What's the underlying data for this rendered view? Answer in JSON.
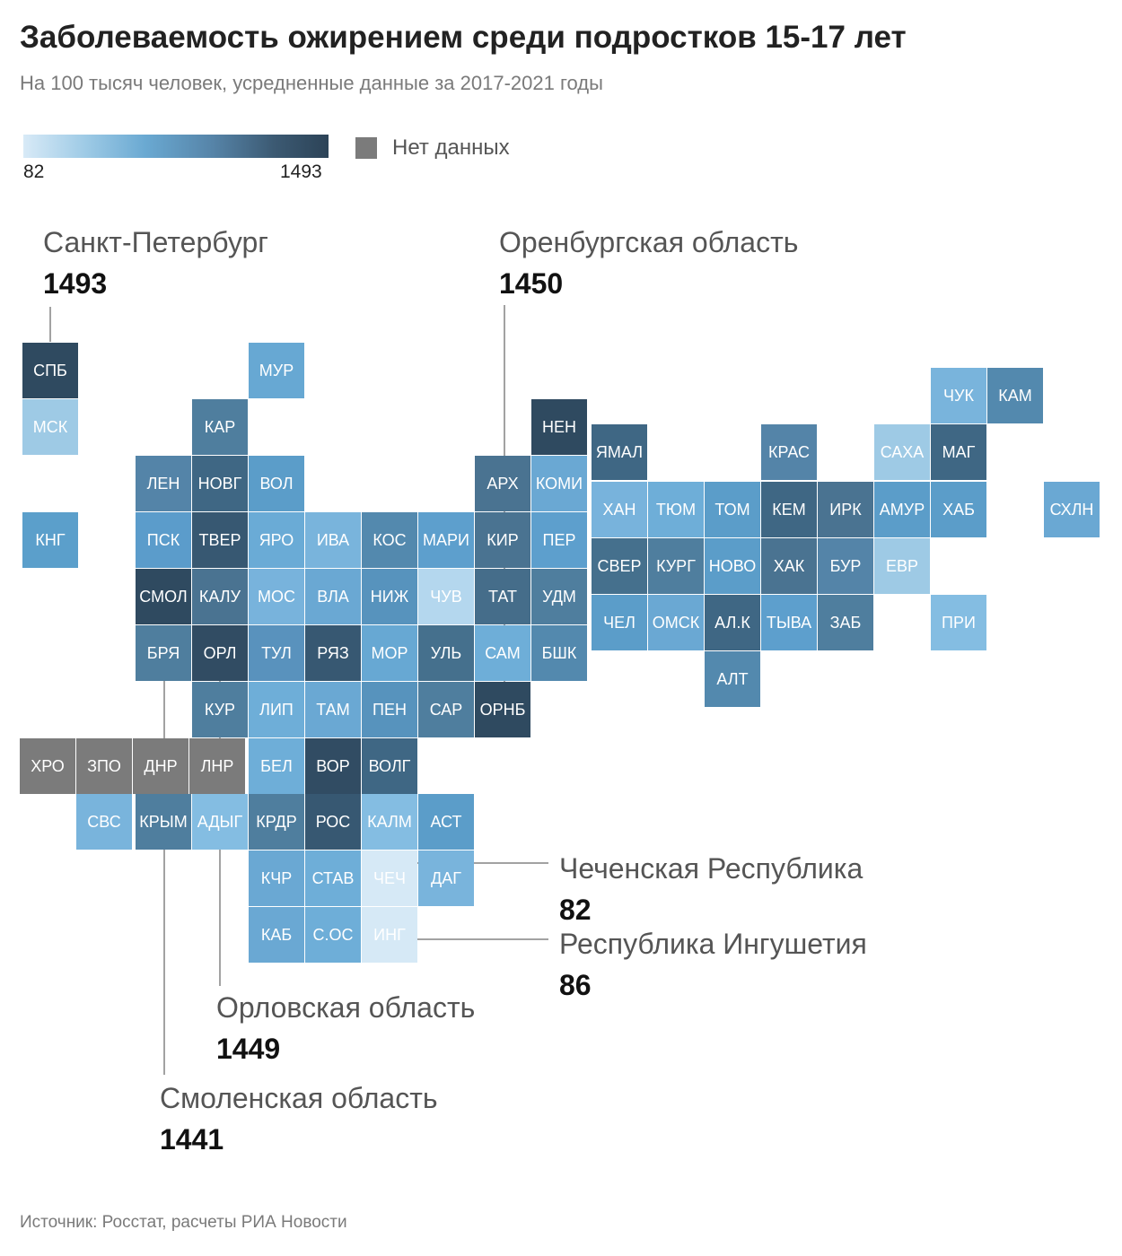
{
  "header": {
    "title": "Заболеваемость ожирением среди подростков 15-17 лет",
    "subtitle": "На 100 тысяч человек, усредненные данные за 2017-2021 годы"
  },
  "legend": {
    "min_label": "82",
    "max_label": "1493",
    "nodata_label": "Нет данных",
    "nodata_color": "#7b7b7b",
    "scale_colors": [
      "#d8eaf7",
      "#9fcbe6",
      "#6aa9d2",
      "#5684a8",
      "#3c5a73",
      "#2c4357"
    ]
  },
  "tiles": [
    {
      "label": "СПБ",
      "color": "#2f4a60"
    },
    {
      "label": "МСК",
      "color": "#9ecae5"
    },
    {
      "label": "КНГ",
      "color": "#5b9fcb"
    },
    {
      "label": "МУР",
      "color": "#67a8d3"
    },
    {
      "label": "КАР",
      "color": "#4f7e9e"
    },
    {
      "label": "ЛЕН",
      "color": "#5484a8"
    },
    {
      "label": "НОВГ",
      "color": "#3f6784"
    },
    {
      "label": "ВОЛ",
      "color": "#5b9dc9"
    },
    {
      "label": "ПСК",
      "color": "#5b9ccb"
    },
    {
      "label": "ТВЕР",
      "color": "#375872"
    },
    {
      "label": "ЯРО",
      "color": "#6aabd6"
    },
    {
      "label": "ИВА",
      "color": "#79b4dc"
    },
    {
      "label": "КОС",
      "color": "#5389ae"
    },
    {
      "label": "МАРИ",
      "color": "#5d9fcd"
    },
    {
      "label": "СМОЛ",
      "color": "#2f4a60"
    },
    {
      "label": "КАЛУ",
      "color": "#4a7391"
    },
    {
      "label": "МОС",
      "color": "#78b3dc"
    },
    {
      "label": "ВЛА",
      "color": "#6aa8d3"
    },
    {
      "label": "НИЖ",
      "color": "#5793bd"
    },
    {
      "label": "ЧУВ",
      "color": "#b4d7ee"
    },
    {
      "label": "БРЯ",
      "color": "#4f7e9e"
    },
    {
      "label": "ОРЛ",
      "color": "#314c63"
    },
    {
      "label": "ТУЛ",
      "color": "#5992bd"
    },
    {
      "label": "РЯЗ",
      "color": "#375872"
    },
    {
      "label": "МОР",
      "color": "#67a8d3"
    },
    {
      "label": "УЛЬ",
      "color": "#45708d"
    },
    {
      "label": "КУР",
      "color": "#4f7e9e"
    },
    {
      "label": "ЛИП",
      "color": "#6eaed8"
    },
    {
      "label": "ТАМ",
      "color": "#6aa8d3"
    },
    {
      "label": "ПЕН",
      "color": "#5793bd"
    },
    {
      "label": "САР",
      "color": "#4f7e9e"
    },
    {
      "label": "НЕН",
      "color": "#2f4a60"
    },
    {
      "label": "АРХ",
      "color": "#4a7391"
    },
    {
      "label": "КОМИ",
      "color": "#6aa8d3"
    },
    {
      "label": "КИР",
      "color": "#4a7391"
    },
    {
      "label": "ПЕР",
      "color": "#5d9fcd"
    },
    {
      "label": "ТАТ",
      "color": "#456d8a"
    },
    {
      "label": "УДМ",
      "color": "#4f7e9e"
    },
    {
      "label": "САМ",
      "color": "#6eaed8"
    },
    {
      "label": "БШК",
      "color": "#5389ae"
    },
    {
      "label": "ОРНБ",
      "color": "#2f4a60"
    },
    {
      "label": "ЯМАЛ",
      "color": "#3f6784"
    },
    {
      "label": "КРАС",
      "color": "#5484a8"
    },
    {
      "label": "ХАН",
      "color": "#78b3dc"
    },
    {
      "label": "ТЮМ",
      "color": "#6eaed8"
    },
    {
      "label": "ТОМ",
      "color": "#5b9dc9"
    },
    {
      "label": "КЕМ",
      "color": "#3f6784"
    },
    {
      "label": "ИРК",
      "color": "#4a7391"
    },
    {
      "label": "СВЕР",
      "color": "#45708d"
    },
    {
      "label": "КУРГ",
      "color": "#4f7e9e"
    },
    {
      "label": "НОВО",
      "color": "#5b9dc9"
    },
    {
      "label": "ХАК",
      "color": "#4a7391"
    },
    {
      "label": "БУР",
      "color": "#5484a8"
    },
    {
      "label": "ЧЕЛ",
      "color": "#5b9dc9"
    },
    {
      "label": "ОМСК",
      "color": "#6aa8d3"
    },
    {
      "label": "АЛ.К",
      "color": "#3f6784"
    },
    {
      "label": "ТЫВА",
      "color": "#5d9fcd"
    },
    {
      "label": "ЗАБ",
      "color": "#4f7e9e"
    },
    {
      "label": "АЛТ",
      "color": "#5389ae"
    },
    {
      "label": "САХА",
      "color": "#9ecae5"
    },
    {
      "label": "МАГ",
      "color": "#3f6784"
    },
    {
      "label": "ЧУК",
      "color": "#79b4dc"
    },
    {
      "label": "КАМ",
      "color": "#5389ae"
    },
    {
      "label": "АМУР",
      "color": "#5b9dc9"
    },
    {
      "label": "ХАБ",
      "color": "#5b9dc9"
    },
    {
      "label": "СХЛН",
      "color": "#6aa8d3"
    },
    {
      "label": "ЕВР",
      "color": "#9ecae5"
    },
    {
      "label": "ПРИ",
      "color": "#84bde2"
    },
    {
      "label": "ХРО",
      "color": "#7b7b7b"
    },
    {
      "label": "ЗПО",
      "color": "#7b7b7b"
    },
    {
      "label": "ДНР",
      "color": "#7b7b7b"
    },
    {
      "label": "ЛНР",
      "color": "#7b7b7b"
    },
    {
      "label": "БЕЛ",
      "color": "#6eaed8"
    },
    {
      "label": "ВОР",
      "color": "#314c63"
    },
    {
      "label": "ВОЛГ",
      "color": "#3f6784"
    },
    {
      "label": "СВС",
      "color": "#79b4dc"
    },
    {
      "label": "КРЫМ",
      "color": "#4f7e9e"
    },
    {
      "label": "АДЫГ",
      "color": "#84bde2"
    },
    {
      "label": "КРДР",
      "color": "#4f7e9e"
    },
    {
      "label": "РОС",
      "color": "#375872"
    },
    {
      "label": "КАЛМ",
      "color": "#84bde2"
    },
    {
      "label": "АСТ",
      "color": "#5b9dc9"
    },
    {
      "label": "КЧР",
      "color": "#6aa8d3"
    },
    {
      "label": "СТАВ",
      "color": "#6eaed8"
    },
    {
      "label": "ЧЕЧ",
      "color": "#d6e9f6"
    },
    {
      "label": "ДАГ",
      "color": "#79b4dc"
    },
    {
      "label": "КАБ",
      "color": "#6aa8d3"
    },
    {
      "label": "С.ОС",
      "color": "#6eaed8"
    },
    {
      "label": "ИНГ",
      "color": "#d6e9f6"
    }
  ],
  "callouts": [
    {
      "name": "Санкт-Петербург",
      "value": "1493"
    },
    {
      "name": "Оренбургская область",
      "value": "1450"
    },
    {
      "name": "Чеченская Республика",
      "value": "82"
    },
    {
      "name": "Республика Ингушетия",
      "value": "86"
    },
    {
      "name": "Орловская область",
      "value": "1449"
    },
    {
      "name": "Смоленская область",
      "value": "1441"
    }
  ],
  "footer": {
    "source": "Источник: Росстат, расчеты РИА Новости"
  }
}
